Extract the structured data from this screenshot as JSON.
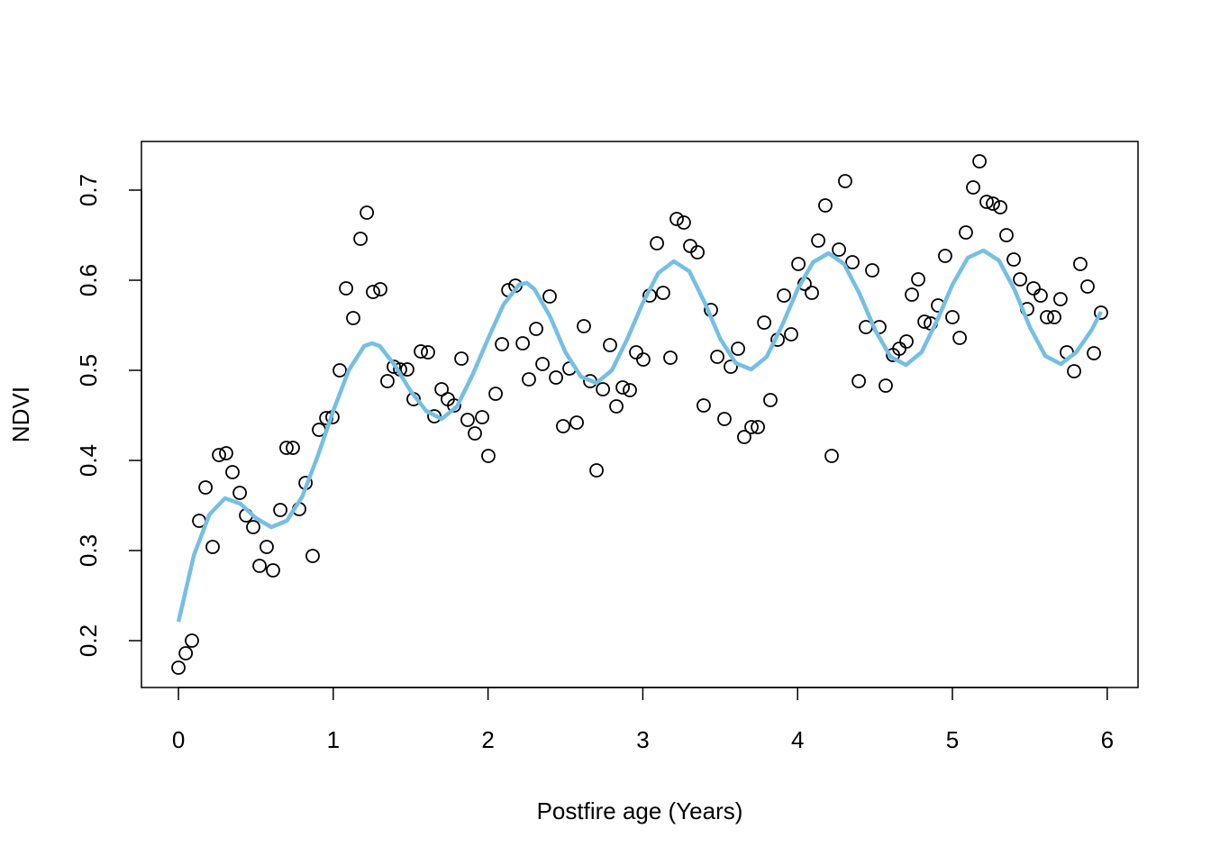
{
  "chart_data": {
    "type": "scatter",
    "xlabel": "Postfire age (Years)",
    "ylabel": "NDVI",
    "xlim": [
      -0.239,
      6.199
    ],
    "ylim": [
      0.148,
      0.754
    ],
    "xticks": [
      0,
      1,
      2,
      3,
      4,
      5,
      6
    ],
    "yticks": [
      0.2,
      0.3,
      0.4,
      0.5,
      0.6,
      0.7
    ],
    "series": [
      {
        "marker": "circle",
        "color": "#000000",
        "x": [
          0,
          0.047,
          0.087,
          0.134,
          0.175,
          0.221,
          0.262,
          0.308,
          0.349,
          0.396,
          0.437,
          0.483,
          0.524,
          0.57,
          0.611,
          0.658,
          0.698,
          0.739,
          0.78,
          0.821,
          0.867,
          0.908,
          0.955,
          0.995,
          1.042,
          1.083,
          1.129,
          1.176,
          1.217,
          1.257,
          1.304,
          1.35,
          1.391,
          1.432,
          1.478,
          1.519,
          1.566,
          1.612,
          1.653,
          1.7,
          1.74,
          1.781,
          1.828,
          1.868,
          1.915,
          1.962,
          2.002,
          2.049,
          2.09,
          2.131,
          2.177,
          2.224,
          2.264,
          2.311,
          2.352,
          2.398,
          2.439,
          2.485,
          2.526,
          2.573,
          2.619,
          2.66,
          2.701,
          2.742,
          2.788,
          2.829,
          2.87,
          2.916,
          2.957,
          3.003,
          3.044,
          3.091,
          3.131,
          3.178,
          3.219,
          3.265,
          3.306,
          3.353,
          3.393,
          3.44,
          3.481,
          3.527,
          3.568,
          3.615,
          3.655,
          3.702,
          3.743,
          3.784,
          3.824,
          3.871,
          3.912,
          3.958,
          4.005,
          4.045,
          4.092,
          4.133,
          4.179,
          4.22,
          4.267,
          4.307,
          4.354,
          4.395,
          4.441,
          4.482,
          4.528,
          4.569,
          4.616,
          4.657,
          4.703,
          4.738,
          4.779,
          4.82,
          4.86,
          4.907,
          4.953,
          5,
          5.047,
          5.087,
          5.134,
          5.175,
          5.221,
          5.262,
          5.309,
          5.349,
          5.396,
          5.437,
          5.483,
          5.524,
          5.57,
          5.611,
          5.658,
          5.698,
          5.739,
          5.786,
          5.826,
          5.873,
          5.914,
          5.96
        ],
        "values": [
          0.17,
          0.186,
          0.2,
          0.333,
          0.37,
          0.304,
          0.406,
          0.408,
          0.387,
          0.364,
          0.339,
          0.326,
          0.283,
          0.304,
          0.278,
          0.345,
          0.414,
          0.414,
          0.346,
          0.375,
          0.294,
          0.434,
          0.447,
          0.448,
          0.5,
          0.591,
          0.558,
          0.646,
          0.675,
          0.587,
          0.59,
          0.488,
          0.504,
          0.501,
          0.501,
          0.468,
          0.521,
          0.52,
          0.449,
          0.479,
          0.468,
          0.461,
          0.513,
          0.445,
          0.43,
          0.448,
          0.405,
          0.474,
          0.529,
          0.589,
          0.594,
          0.53,
          0.49,
          0.546,
          0.507,
          0.582,
          0.492,
          0.438,
          0.502,
          0.442,
          0.549,
          0.488,
          0.389,
          0.479,
          0.528,
          0.46,
          0.481,
          0.478,
          0.52,
          0.512,
          0.583,
          0.641,
          0.586,
          0.514,
          0.668,
          0.664,
          0.638,
          0.631,
          0.461,
          0.567,
          0.515,
          0.446,
          0.504,
          0.524,
          0.426,
          0.437,
          0.437,
          0.553,
          0.467,
          0.534,
          0.583,
          0.54,
          0.618,
          0.596,
          0.586,
          0.644,
          0.683,
          0.405,
          0.634,
          0.71,
          0.62,
          0.488,
          0.548,
          0.611,
          0.548,
          0.483,
          0.517,
          0.524,
          0.532,
          0.584,
          0.601,
          0.554,
          0.552,
          0.572,
          0.627,
          0.559,
          0.536,
          0.653,
          0.703,
          0.732,
          0.687,
          0.685,
          0.681,
          0.65,
          0.623,
          0.601,
          0.568,
          0.591,
          0.583,
          0.559,
          0.559,
          0.579,
          0.52,
          0.499,
          0.618,
          0.593,
          0.519,
          0.564
        ]
      },
      {
        "marker": "line",
        "color": "#75bfe3",
        "x": [
          0,
          0.1,
          0.2,
          0.3,
          0.4,
          0.5,
          0.6,
          0.7,
          0.8,
          0.9,
          1.0,
          1.1,
          1.2,
          1.25,
          1.3,
          1.4,
          1.5,
          1.6,
          1.7,
          1.8,
          1.9,
          2.0,
          2.1,
          2.2,
          2.25,
          2.3,
          2.4,
          2.5,
          2.6,
          2.7,
          2.8,
          2.9,
          3.0,
          3.1,
          3.2,
          3.3,
          3.4,
          3.5,
          3.6,
          3.7,
          3.8,
          3.9,
          4.0,
          4.1,
          4.2,
          4.3,
          4.4,
          4.5,
          4.6,
          4.7,
          4.8,
          4.9,
          5.0,
          5.1,
          5.2,
          5.3,
          5.4,
          5.5,
          5.6,
          5.7,
          5.8,
          5.9,
          5.96
        ],
        "values": [
          0.221,
          0.295,
          0.34,
          0.358,
          0.352,
          0.336,
          0.326,
          0.333,
          0.36,
          0.405,
          0.455,
          0.5,
          0.527,
          0.53,
          0.527,
          0.505,
          0.477,
          0.455,
          0.446,
          0.46,
          0.495,
          0.535,
          0.573,
          0.595,
          0.597,
          0.59,
          0.56,
          0.52,
          0.493,
          0.486,
          0.5,
          0.535,
          0.575,
          0.608,
          0.621,
          0.61,
          0.575,
          0.535,
          0.508,
          0.501,
          0.515,
          0.55,
          0.59,
          0.62,
          0.63,
          0.618,
          0.585,
          0.545,
          0.515,
          0.506,
          0.52,
          0.555,
          0.595,
          0.625,
          0.633,
          0.622,
          0.59,
          0.548,
          0.516,
          0.507,
          0.52,
          0.545,
          0.565
        ]
      }
    ]
  }
}
